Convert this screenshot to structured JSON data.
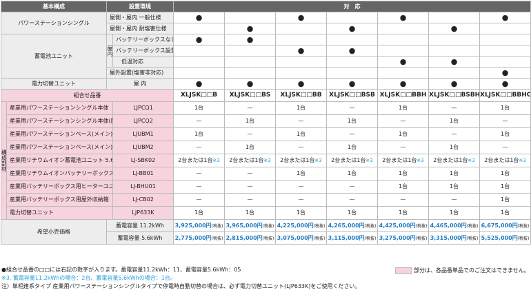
{
  "header": {
    "basic": "基本構成",
    "env": "設置環境",
    "support": "対　応"
  },
  "rows": {
    "power_station": {
      "label": "パワーステーションシングル",
      "env1": "屋側・屋内 一般仕様",
      "env2": "屋側・屋内 耐塩害仕様"
    },
    "battery_unit": {
      "label": "蓄電池ユニット",
      "side": "屋内",
      "env1": "バッテリーボックスなし",
      "env2": "バッテリーボックス設置",
      "env3": "低温対応",
      "env4": "屋外設置(塩害非対応)"
    },
    "switch_unit": {
      "label": "電力切替ユニット",
      "env": "屋 内"
    }
  },
  "combo": {
    "header": "組合せ品番",
    "side_label": "構成部材",
    "models": [
      "XLJSK□□B",
      "XLJSK□□BS",
      "XLJSK□□BB",
      "XLJSK□□BSB",
      "XLJSK□□BBH",
      "XLJSK□□BSBH",
      "XLJSK□□BBHC"
    ],
    "parts": [
      {
        "name": "産業用パワーステーションシングル本体",
        "code": "LJPCQ1",
        "vals": [
          "1台",
          "—",
          "1台",
          "—",
          "1台",
          "—",
          "1台"
        ]
      },
      {
        "name": "産業用パワーステーションシングル本体(耐塩害仕様)",
        "code": "LJPCQ2",
        "vals": [
          "—",
          "1台",
          "—",
          "1台",
          "—",
          "1台",
          "—"
        ]
      },
      {
        "name": "産業用パワーステーションベース(メイン)",
        "code": "LJUBM1",
        "vals": [
          "1台",
          "—",
          "1台",
          "—",
          "1台",
          "—",
          "1台"
        ]
      },
      {
        "name": "産業用パワーステーションベース(メイン)(耐塩害仕様)",
        "code": "LJUBM2",
        "vals": [
          "—",
          "1台",
          "—",
          "1台",
          "—",
          "1台",
          "—"
        ]
      },
      {
        "name": "産業用リチウムイオン蓄電池ユニット 5.6kWh",
        "code": "LJ-SBK02",
        "vals": [
          "2台または1台※3",
          "2台または1台※3",
          "2台または1台※3",
          "2台または1台※3",
          "2台または1台※3",
          "2台または1台※3",
          "2台または1台※3"
        ]
      },
      {
        "name": "産業用リチウムイオンバッテリーボックス",
        "code": "LJ-BB01",
        "vals": [
          "—",
          "—",
          "1台",
          "1台",
          "1台",
          "1台",
          "1台"
        ]
      },
      {
        "name": "産業用バッテリーボックス用ヒーターユニット",
        "code": "LJ-BHU01",
        "vals": [
          "—",
          "—",
          "—",
          "—",
          "1台",
          "1台",
          "1台"
        ]
      },
      {
        "name": "産業用バッテリーボックス用屋外収納箱",
        "code": "LJ-CB02",
        "vals": [
          "—",
          "—",
          "—",
          "—",
          "—",
          "—",
          "1台"
        ]
      },
      {
        "name": "電力切替ユニット",
        "code": "LJP633K",
        "vals": [
          "1台",
          "1台",
          "1台",
          "1台",
          "1台",
          "1台",
          "1台"
        ]
      }
    ]
  },
  "price": {
    "label": "希望小売価格",
    "cap1": "蓄電容量 11.2kWh",
    "cap2": "蓄電容量 5.6kWh",
    "tax": "(税抜)",
    "row1": [
      "3,925,000円",
      "3,965,000円",
      "4,225,000円",
      "4,265,000円",
      "4,425,000円",
      "4,465,000円",
      "6,675,000円"
    ],
    "row2": [
      "2,775,000円",
      "2,815,000円",
      "3,075,000円",
      "3,115,000円",
      "3,275,000円",
      "3,315,000円",
      "5,525,000円"
    ]
  },
  "notes": {
    "n1": "●組合せ品番の□□には右記の数字が入ります。蓄電容量11.2kWh：11、蓄電容量5.6kWh：05",
    "n2": "※3. 蓄電容量11.2kWhの場合：2台、蓄電容量5.6kWhの場合：1台。",
    "n3": "注）単相連系タイプ 産業用パワーステーションシングルタイプで停電時自動切替の場合は、必ず電力切替ユニット(LJP633K)をご使用ください。",
    "legend": "部分は、各品番単品でのご注文はできません。"
  },
  "colors": {
    "header": "#666666",
    "pink": "#f6d3dd",
    "gray": "#ededed",
    "price_blue": "#1f7bc1"
  }
}
